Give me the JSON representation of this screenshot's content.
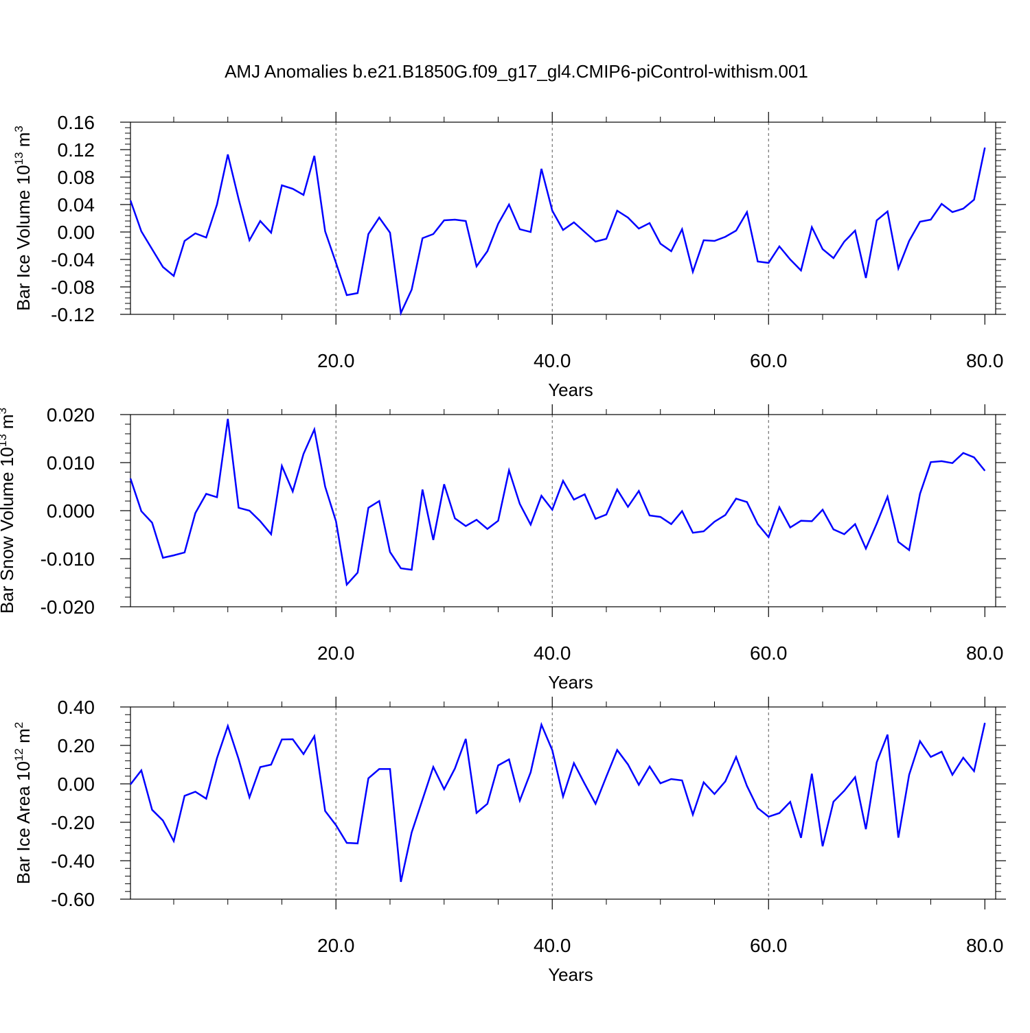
{
  "title": "AMJ Anomalies b.e21.B1850G.f09_g17_gl4.CMIP6-piControl-withism.001",
  "colors": {
    "line": "#0000ff",
    "axis": "#000000",
    "grid": "#555555"
  },
  "chart_data": [
    {
      "type": "line",
      "ylabel": "Bar Ice Volume 10",
      "ylabel_sup": "13",
      "ylabel_unit": "m",
      "ylabel_unit_sup": "3",
      "xlabel": "Years",
      "xlim": [
        1,
        81
      ],
      "ylim": [
        -0.12,
        0.16
      ],
      "yticks": [
        -0.12,
        -0.08,
        -0.04,
        0.0,
        0.04,
        0.08,
        0.12,
        0.16
      ],
      "ytick_labels": [
        "-0.12",
        "-0.08",
        "-0.04",
        "0.00",
        "0.04",
        "0.08",
        "0.12",
        "0.16"
      ],
      "xticks": [
        20,
        40,
        60,
        80
      ],
      "xtick_labels": [
        "20.0",
        "40.0",
        "60.0",
        "80.0"
      ],
      "xgrid": [
        20,
        40,
        60
      ],
      "series": [
        {
          "values": [
            0.046,
            0.001,
            -0.025,
            -0.051,
            -0.064,
            -0.013,
            -0.002,
            -0.008,
            0.04,
            0.113,
            0.048,
            -0.012,
            0.016,
            -0.001,
            0.068,
            0.063,
            0.054,
            0.111,
            0.001,
            -0.045,
            -0.092,
            -0.089,
            -0.003,
            0.021,
            -0.001,
            -0.118,
            -0.084,
            -0.009,
            -0.003,
            0.017,
            0.018,
            0.016,
            -0.05,
            -0.028,
            0.012,
            0.04,
            0.004,
            0.0,
            0.092,
            0.031,
            0.003,
            0.014,
            0.0,
            -0.014,
            -0.01,
            0.031,
            0.021,
            0.005,
            0.013,
            -0.017,
            -0.028,
            0.004,
            -0.058,
            -0.012,
            -0.013,
            -0.007,
            0.002,
            0.029,
            -0.043,
            -0.045,
            -0.021,
            -0.04,
            -0.056,
            0.007,
            -0.025,
            -0.038,
            -0.014,
            0.002,
            -0.067,
            0.017,
            0.03,
            -0.053,
            -0.013,
            0.015,
            0.018,
            0.041,
            0.029,
            0.034,
            0.047,
            0.123
          ]
        }
      ]
    },
    {
      "type": "line",
      "ylabel": "Bar Snow Volume 10",
      "ylabel_sup": "13",
      "ylabel_unit": "m",
      "ylabel_unit_sup": "3",
      "xlabel": "Years",
      "xlim": [
        1,
        81
      ],
      "ylim": [
        -0.02,
        0.02
      ],
      "yticks": [
        -0.02,
        -0.01,
        0.0,
        0.01,
        0.02
      ],
      "ytick_labels": [
        "-0.020",
        "-0.010",
        "0.000",
        "0.010",
        "0.020"
      ],
      "xticks": [
        20,
        40,
        60,
        80
      ],
      "xtick_labels": [
        "20.0",
        "40.0",
        "60.0",
        "80.0"
      ],
      "xgrid": [
        20,
        40,
        60
      ],
      "series": [
        {
          "values": [
            0.0067,
            -0.0001,
            -0.0025,
            -0.0098,
            -0.0093,
            -0.0087,
            -0.0005,
            0.0035,
            0.0028,
            0.0191,
            0.0006,
            0.0,
            -0.0022,
            -0.0049,
            0.0093,
            0.004,
            0.0118,
            0.0169,
            0.005,
            -0.0022,
            -0.0154,
            -0.0129,
            0.0006,
            0.002,
            -0.0086,
            -0.012,
            -0.0123,
            0.0044,
            -0.0061,
            0.0055,
            -0.0016,
            -0.0032,
            -0.0019,
            -0.0038,
            -0.0021,
            0.0084,
            0.0014,
            -0.0029,
            0.0031,
            0.0002,
            0.0062,
            0.0023,
            0.0034,
            -0.0017,
            -0.0008,
            0.0044,
            0.0008,
            0.0041,
            -0.001,
            -0.0013,
            -0.0028,
            -0.0001,
            -0.0046,
            -0.0043,
            -0.0023,
            -0.0009,
            0.0025,
            0.0018,
            -0.0028,
            -0.0055,
            0.0007,
            -0.0035,
            -0.0021,
            -0.0022,
            0.0002,
            -0.0039,
            -0.0049,
            -0.0028,
            -0.0079,
            -0.0027,
            0.0029,
            -0.0065,
            -0.0082,
            0.0035,
            0.0101,
            0.0103,
            0.0099,
            0.012,
            0.0111,
            0.0083
          ]
        }
      ]
    },
    {
      "type": "line",
      "ylabel": "Bar Ice Area 10",
      "ylabel_sup": "12",
      "ylabel_unit": "m",
      "ylabel_unit_sup": "2",
      "xlabel": "Years",
      "xlim": [
        1,
        81
      ],
      "ylim": [
        -0.6,
        0.4
      ],
      "yticks": [
        -0.6,
        -0.4,
        -0.2,
        0.0,
        0.2,
        0.4
      ],
      "ytick_labels": [
        "-0.60",
        "-0.40",
        "-0.20",
        "0.00",
        "0.20",
        "0.40"
      ],
      "xticks": [
        20,
        40,
        60,
        80
      ],
      "xtick_labels": [
        "20.0",
        "40.0",
        "60.0",
        "80.0"
      ],
      "xgrid": [
        20,
        40,
        60
      ],
      "series": [
        {
          "values": [
            -0.003,
            0.07,
            -0.135,
            -0.191,
            -0.298,
            -0.062,
            -0.041,
            -0.077,
            0.134,
            0.301,
            0.129,
            -0.07,
            0.087,
            0.1,
            0.231,
            0.232,
            0.155,
            0.248,
            -0.141,
            -0.215,
            -0.307,
            -0.31,
            0.029,
            0.077,
            0.077,
            -0.51,
            -0.253,
            -0.082,
            0.088,
            -0.028,
            0.08,
            0.234,
            -0.151,
            -0.104,
            0.096,
            0.127,
            -0.087,
            0.06,
            0.308,
            0.175,
            -0.066,
            0.108,
            0.0,
            -0.104,
            0.038,
            0.176,
            0.101,
            -0.005,
            0.09,
            0.003,
            0.025,
            0.018,
            -0.16,
            0.008,
            -0.053,
            0.013,
            0.14,
            -0.011,
            -0.126,
            -0.171,
            -0.152,
            -0.094,
            -0.281,
            0.053,
            -0.325,
            -0.093,
            -0.036,
            0.035,
            -0.236,
            0.112,
            0.256,
            -0.28,
            0.047,
            0.222,
            0.14,
            0.167,
            0.047,
            0.136,
            0.066,
            0.317
          ]
        }
      ]
    }
  ]
}
